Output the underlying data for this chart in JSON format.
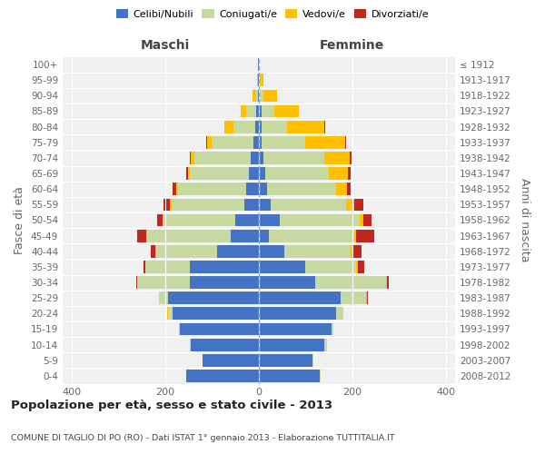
{
  "age_groups": [
    "100+",
    "95-99",
    "90-94",
    "85-89",
    "80-84",
    "75-79",
    "70-74",
    "65-69",
    "60-64",
    "55-59",
    "50-54",
    "45-49",
    "40-44",
    "35-39",
    "30-34",
    "25-29",
    "20-24",
    "15-19",
    "10-14",
    "5-9",
    "0-4"
  ],
  "birth_years": [
    "≤ 1912",
    "1913-1917",
    "1918-1922",
    "1923-1927",
    "1928-1932",
    "1933-1937",
    "1938-1942",
    "1943-1947",
    "1948-1952",
    "1953-1957",
    "1958-1962",
    "1963-1967",
    "1968-1972",
    "1973-1977",
    "1978-1982",
    "1983-1987",
    "1988-1992",
    "1993-1997",
    "1998-2002",
    "2003-2007",
    "2008-2012"
  ],
  "colors": {
    "celibi": "#4472c4",
    "coniugati": "#c5d9a0",
    "vedovi": "#ffc000",
    "divorziati": "#c0271f",
    "background": "#f0f0f0",
    "grid": "#cccccc",
    "dashed_line": "#8ab4c8"
  },
  "males": {
    "celibi": [
      1,
      1,
      2,
      5,
      7,
      12,
      18,
      22,
      28,
      32,
      50,
      60,
      90,
      148,
      148,
      195,
      185,
      170,
      145,
      120,
      155
    ],
    "coniugati": [
      0,
      1,
      4,
      22,
      48,
      90,
      120,
      125,
      145,
      155,
      155,
      180,
      130,
      95,
      112,
      18,
      10,
      2,
      2,
      1,
      1
    ],
    "vedovi": [
      0,
      2,
      8,
      12,
      18,
      8,
      8,
      5,
      3,
      3,
      2,
      2,
      1,
      1,
      1,
      1,
      1,
      0,
      0,
      0,
      0
    ],
    "divorziati": [
      0,
      0,
      0,
      0,
      0,
      2,
      2,
      3,
      8,
      15,
      10,
      18,
      10,
      2,
      2,
      0,
      0,
      0,
      0,
      0,
      0
    ]
  },
  "females": {
    "celibi": [
      1,
      1,
      2,
      5,
      5,
      5,
      10,
      14,
      18,
      25,
      45,
      22,
      55,
      100,
      120,
      175,
      165,
      155,
      140,
      115,
      130
    ],
    "coniugati": [
      0,
      1,
      8,
      28,
      55,
      95,
      130,
      135,
      148,
      162,
      170,
      182,
      142,
      108,
      152,
      55,
      15,
      5,
      5,
      2,
      2
    ],
    "vedovi": [
      1,
      8,
      28,
      52,
      80,
      85,
      55,
      42,
      22,
      18,
      8,
      5,
      5,
      3,
      2,
      2,
      1,
      0,
      0,
      0,
      0
    ],
    "divorziati": [
      0,
      0,
      0,
      0,
      2,
      2,
      3,
      5,
      8,
      18,
      18,
      38,
      18,
      14,
      4,
      2,
      0,
      0,
      0,
      0,
      0
    ]
  },
  "xlim": 420,
  "title": "Popolazione per età, sesso e stato civile - 2013",
  "subtitle": "COMUNE DI TAGLIO DI PO (RO) - Dati ISTAT 1° gennaio 2013 - Elaborazione TUTTITALIA.IT",
  "ylabel_left": "Fasce di età",
  "ylabel_right": "Anni di nascita",
  "xlabel_left": "Maschi",
  "xlabel_right": "Femmine"
}
